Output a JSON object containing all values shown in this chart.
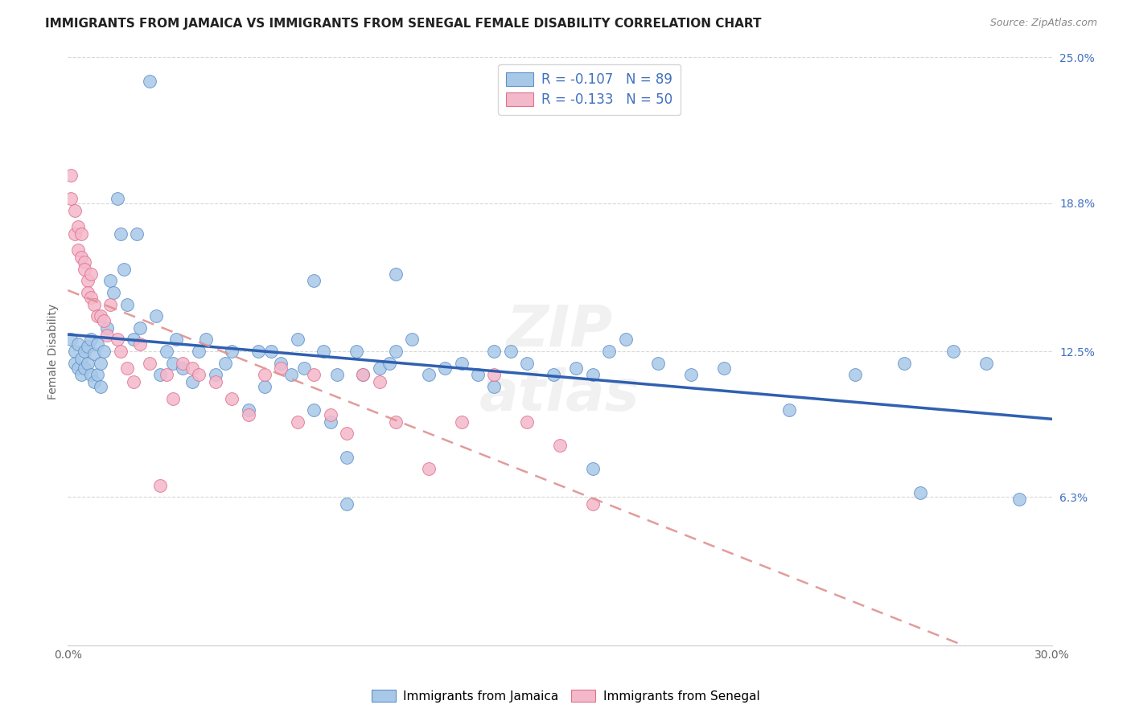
{
  "title": "IMMIGRANTS FROM JAMAICA VS IMMIGRANTS FROM SENEGAL FEMALE DISABILITY CORRELATION CHART",
  "source": "Source: ZipAtlas.com",
  "ylabel": "Female Disability",
  "xlim": [
    0.0,
    0.3
  ],
  "ylim": [
    0.0,
    0.25
  ],
  "R_jamaica": -0.107,
  "N_jamaica": 89,
  "R_senegal": -0.133,
  "N_senegal": 50,
  "color_jamaica": "#a8c8e8",
  "color_senegal": "#f4b8cb",
  "edge_jamaica": "#6090c8",
  "edge_senegal": "#e07090",
  "line_jamaica": "#3060b0",
  "line_senegal": "#e09090",
  "legend_text_color": "#4070c0",
  "background_color": "#ffffff",
  "grid_color": "#d8d8d8",
  "title_fontsize": 11,
  "axis_label_fontsize": 10,
  "tick_fontsize": 10,
  "jamaica_x": [
    0.001,
    0.002,
    0.002,
    0.003,
    0.003,
    0.004,
    0.004,
    0.005,
    0.005,
    0.006,
    0.006,
    0.007,
    0.007,
    0.008,
    0.008,
    0.009,
    0.009,
    0.01,
    0.01,
    0.011,
    0.012,
    0.013,
    0.014,
    0.015,
    0.016,
    0.017,
    0.018,
    0.02,
    0.021,
    0.022,
    0.025,
    0.027,
    0.028,
    0.03,
    0.032,
    0.033,
    0.035,
    0.038,
    0.04,
    0.042,
    0.045,
    0.048,
    0.05,
    0.055,
    0.058,
    0.06,
    0.062,
    0.065,
    0.068,
    0.07,
    0.072,
    0.075,
    0.078,
    0.08,
    0.082,
    0.085,
    0.088,
    0.09,
    0.095,
    0.098,
    0.1,
    0.105,
    0.11,
    0.115,
    0.12,
    0.125,
    0.13,
    0.135,
    0.14,
    0.148,
    0.155,
    0.16,
    0.165,
    0.17,
    0.18,
    0.19,
    0.2,
    0.22,
    0.24,
    0.255,
    0.26,
    0.27,
    0.28,
    0.29,
    0.075,
    0.085,
    0.1,
    0.13,
    0.16
  ],
  "jamaica_y": [
    0.13,
    0.125,
    0.12,
    0.128,
    0.118,
    0.122,
    0.115,
    0.125,
    0.118,
    0.127,
    0.12,
    0.13,
    0.115,
    0.124,
    0.112,
    0.128,
    0.115,
    0.12,
    0.11,
    0.125,
    0.135,
    0.155,
    0.15,
    0.19,
    0.175,
    0.16,
    0.145,
    0.13,
    0.175,
    0.135,
    0.24,
    0.14,
    0.115,
    0.125,
    0.12,
    0.13,
    0.118,
    0.112,
    0.125,
    0.13,
    0.115,
    0.12,
    0.125,
    0.1,
    0.125,
    0.11,
    0.125,
    0.12,
    0.115,
    0.13,
    0.118,
    0.1,
    0.125,
    0.095,
    0.115,
    0.08,
    0.125,
    0.115,
    0.118,
    0.12,
    0.125,
    0.13,
    0.115,
    0.118,
    0.12,
    0.115,
    0.11,
    0.125,
    0.12,
    0.115,
    0.118,
    0.115,
    0.125,
    0.13,
    0.12,
    0.115,
    0.118,
    0.1,
    0.115,
    0.12,
    0.065,
    0.125,
    0.12,
    0.062,
    0.155,
    0.06,
    0.158,
    0.125,
    0.075
  ],
  "senegal_x": [
    0.001,
    0.001,
    0.002,
    0.002,
    0.003,
    0.003,
    0.004,
    0.004,
    0.005,
    0.005,
    0.006,
    0.006,
    0.007,
    0.007,
    0.008,
    0.009,
    0.01,
    0.011,
    0.012,
    0.013,
    0.015,
    0.016,
    0.018,
    0.02,
    0.022,
    0.025,
    0.028,
    0.03,
    0.032,
    0.035,
    0.038,
    0.04,
    0.045,
    0.05,
    0.055,
    0.06,
    0.065,
    0.07,
    0.075,
    0.08,
    0.085,
    0.09,
    0.095,
    0.1,
    0.11,
    0.12,
    0.13,
    0.14,
    0.15,
    0.16
  ],
  "senegal_y": [
    0.2,
    0.19,
    0.185,
    0.175,
    0.178,
    0.168,
    0.175,
    0.165,
    0.163,
    0.16,
    0.155,
    0.15,
    0.158,
    0.148,
    0.145,
    0.14,
    0.14,
    0.138,
    0.132,
    0.145,
    0.13,
    0.125,
    0.118,
    0.112,
    0.128,
    0.12,
    0.068,
    0.115,
    0.105,
    0.12,
    0.118,
    0.115,
    0.112,
    0.105,
    0.098,
    0.115,
    0.118,
    0.095,
    0.115,
    0.098,
    0.09,
    0.115,
    0.112,
    0.095,
    0.075,
    0.095,
    0.115,
    0.095,
    0.085,
    0.06
  ],
  "ytick_vals": [
    0.0,
    0.063,
    0.125,
    0.188,
    0.25
  ],
  "ytick_labels": [
    "",
    "6.3%",
    "12.5%",
    "18.8%",
    "25.0%"
  ]
}
